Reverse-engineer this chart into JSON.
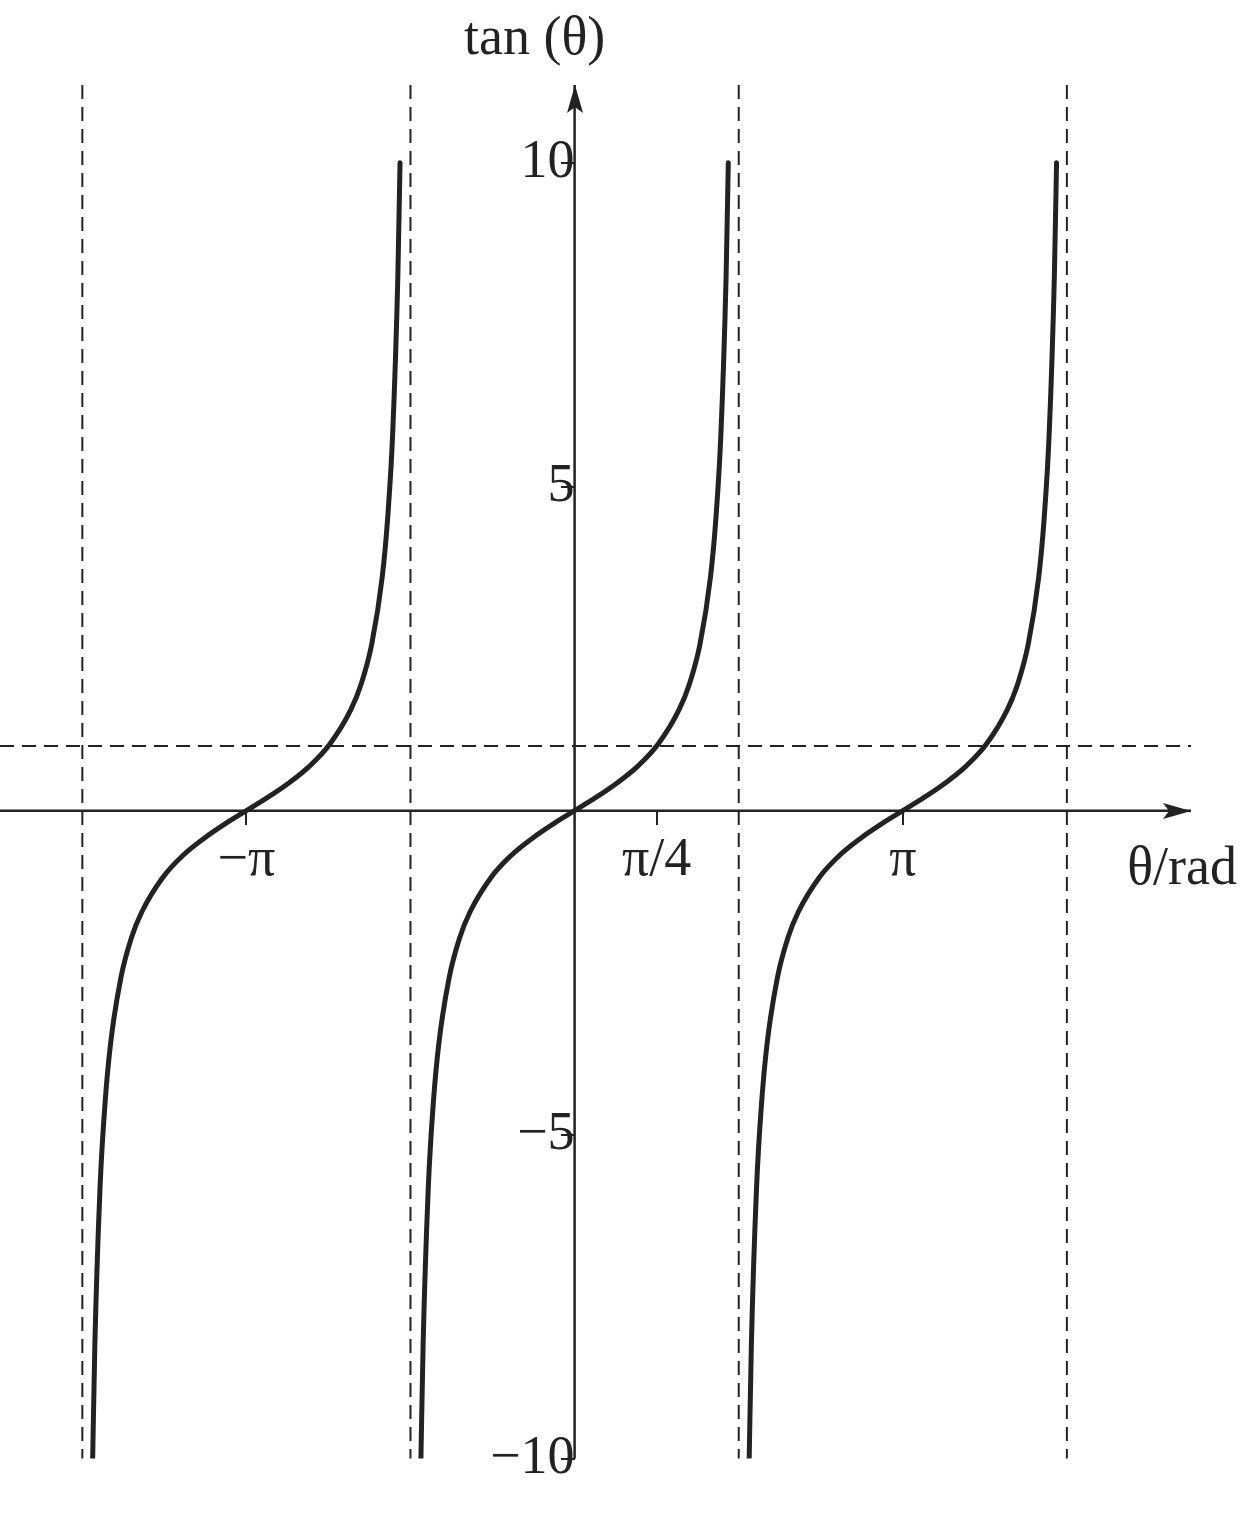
{
  "chart_data": {
    "type": "line",
    "xlabel": "θ/rad",
    "ylabel": "tan (θ)",
    "xlim": [
      -5.5,
      5.9
    ],
    "ylim": [
      -10,
      11.2
    ],
    "xticks": [
      {
        "value": -3.1416,
        "label": "−π"
      },
      {
        "value": 0.7854,
        "label": "π/4"
      },
      {
        "value": 3.1416,
        "label": "π"
      }
    ],
    "yticks": [
      -10,
      -5,
      5,
      10
    ],
    "series": [
      {
        "color": "#222222",
        "x": [
          -4.613,
          -4.592,
          -4.542,
          -4.492,
          -4.442,
          -4.342,
          -4.242,
          -4.142,
          -3.942,
          -3.742,
          -3.542,
          -3.342,
          -3.142,
          -2.942,
          -2.742,
          -2.542,
          -2.342,
          -2.142,
          -2.042,
          -1.942,
          -1.842,
          -1.792,
          -1.742,
          -1.692,
          -1.671
        ],
        "values": [
          -10,
          -8.24,
          -5.8,
          -4.46,
          -3.6,
          -2.57,
          -1.96,
          -1.56,
          -1.03,
          -0.68,
          -0.42,
          -0.2,
          0,
          0.2,
          0.42,
          0.68,
          1.03,
          1.56,
          1.96,
          2.57,
          3.6,
          4.46,
          5.8,
          8.24,
          10
        ]
      },
      {
        "color": "#222222",
        "x": [
          -1.471,
          -1.45,
          -1.4,
          -1.35,
          -1.3,
          -1.2,
          -1.1,
          -1.0,
          -0.8,
          -0.6,
          -0.4,
          -0.2,
          0,
          0.2,
          0.4,
          0.6,
          0.8,
          1.0,
          1.1,
          1.2,
          1.3,
          1.35,
          1.4,
          1.45,
          1.471
        ],
        "values": [
          -10,
          -8.24,
          -5.8,
          -4.46,
          -3.6,
          -2.57,
          -1.96,
          -1.56,
          -1.03,
          -0.68,
          -0.42,
          -0.2,
          0,
          0.2,
          0.42,
          0.68,
          1.03,
          1.56,
          1.96,
          2.57,
          3.6,
          4.46,
          5.8,
          8.24,
          10
        ]
      },
      {
        "color": "#222222",
        "x": [
          1.671,
          1.692,
          1.742,
          1.792,
          1.842,
          1.942,
          2.042,
          2.142,
          2.342,
          2.542,
          2.742,
          2.942,
          3.142,
          3.342,
          3.542,
          3.742,
          3.942,
          4.142,
          4.242,
          4.342,
          4.442,
          4.492,
          4.542,
          4.592,
          4.613
        ],
        "values": [
          -10,
          -8.24,
          -5.8,
          -4.46,
          -3.6,
          -2.57,
          -1.96,
          -1.56,
          -1.03,
          -0.68,
          -0.42,
          -0.2,
          0,
          0.2,
          0.42,
          0.68,
          1.03,
          1.56,
          1.96,
          2.57,
          3.6,
          4.46,
          5.8,
          8.24,
          10
        ]
      }
    ],
    "ref_lines": [
      {
        "axis": "x",
        "value": -4.712,
        "line_style": "dashed",
        "color": "#222222"
      },
      {
        "axis": "x",
        "value": -1.571,
        "line_style": "dashed",
        "color": "#222222"
      },
      {
        "axis": "x",
        "value": 1.571,
        "line_style": "dashed",
        "color": "#222222"
      },
      {
        "axis": "x",
        "value": 4.712,
        "line_style": "dashed",
        "color": "#222222"
      },
      {
        "axis": "y",
        "value": 1,
        "line_style": "dashed",
        "color": "#222222"
      }
    ],
    "grid": false,
    "legend": false,
    "marker": "none",
    "line_style": "solid"
  }
}
